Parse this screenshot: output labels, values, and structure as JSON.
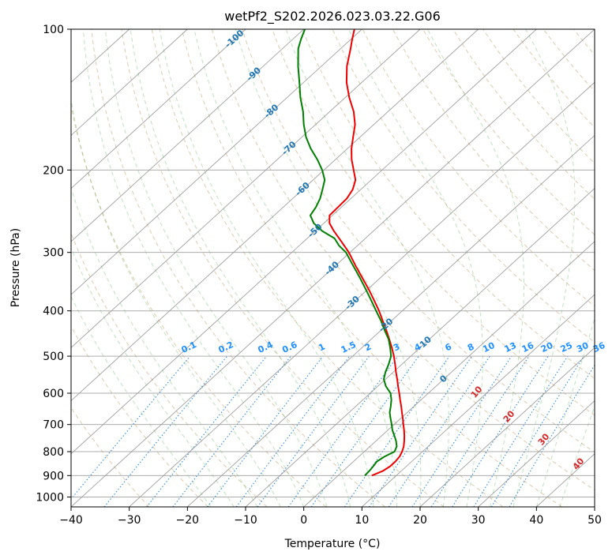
{
  "chart_data": {
    "type": "line",
    "diagram": "Skew-T log-P",
    "title": "wetPf2_S202.2026.023.03.22.G06",
    "xlabel": "Temperature (°C)",
    "ylabel": "Pressure (hPa)",
    "xlim": [
      -40,
      50
    ],
    "ylim": [
      1050,
      100
    ],
    "y_scale": "log",
    "x_ticks": [
      "−40",
      "−30",
      "−20",
      "−10",
      "0",
      "10",
      "20",
      "30",
      "40",
      "50"
    ],
    "y_ticks": [
      "100",
      "200",
      "300",
      "400",
      "500",
      "600",
      "700",
      "800",
      "900",
      "1000"
    ],
    "grid": true,
    "isotherm_labels": [
      "-100",
      "-90",
      "-80",
      "-70",
      "-60",
      "-50",
      "-40",
      "-30",
      "-20",
      "-10",
      "0"
    ],
    "isotherm_label_values": [
      -100,
      -90,
      -80,
      -70,
      -60,
      -50,
      -40,
      -30,
      -20,
      -10,
      0
    ],
    "mixing_ratio_labels": [
      "0.1",
      "0.2",
      "0.4",
      "0.6",
      "1",
      "1.5",
      "2",
      "3",
      "4",
      "6",
      "8",
      "10",
      "13",
      "16",
      "20",
      "25",
      "30",
      "36"
    ],
    "moist_adiabat_labels": [
      "10",
      "20",
      "30",
      "40"
    ],
    "series": [
      {
        "color": "#ee0000",
        "p": [
          900,
          880,
          860,
          840,
          820,
          800,
          780,
          760,
          740,
          720,
          700,
          680,
          660,
          640,
          620,
          600,
          580,
          560,
          540,
          520,
          500,
          480,
          460,
          440,
          420,
          400,
          380,
          360,
          340,
          320,
          300,
          290,
          280,
          270,
          260,
          250,
          240,
          230,
          220,
          210,
          200,
          190,
          180,
          170,
          160,
          150,
          140,
          130,
          120,
          110,
          105,
          100
        ],
        "t": [
          5.8,
          6.8,
          7.2,
          7.2,
          7.0,
          6.5,
          5.8,
          4.9,
          3.9,
          2.8,
          1.6,
          0.4,
          -0.9,
          -2.2,
          -3.6,
          -5.0,
          -6.5,
          -8.0,
          -9.6,
          -11.2,
          -12.9,
          -14.8,
          -16.9,
          -19.1,
          -21.5,
          -24.0,
          -26.8,
          -29.8,
          -33.1,
          -36.6,
          -40.2,
          -42.3,
          -44.5,
          -46.8,
          -49.0,
          -50.5,
          -50.6,
          -50.7,
          -51.4,
          -52.7,
          -54.9,
          -57.2,
          -59.3,
          -61.2,
          -63.2,
          -65.9,
          -69.3,
          -72.6,
          -75.6,
          -78.3,
          -79.8,
          -81.3
        ]
      },
      {
        "color": "#008000",
        "p": [
          900,
          880,
          860,
          840,
          820,
          800,
          780,
          760,
          740,
          720,
          700,
          680,
          660,
          640,
          620,
          600,
          580,
          560,
          540,
          520,
          500,
          480,
          460,
          440,
          420,
          400,
          380,
          360,
          340,
          320,
          300,
          290,
          280,
          270,
          260,
          250,
          240,
          230,
          220,
          210,
          200,
          190,
          180,
          170,
          160,
          150,
          140,
          130,
          120,
          110,
          105,
          100
        ],
        "t": [
          4.6,
          4.5,
          4.3,
          4.0,
          4.4,
          5.2,
          4.6,
          3.5,
          2.2,
          0.8,
          -0.4,
          -1.7,
          -3.0,
          -4.0,
          -5.1,
          -6.5,
          -8.6,
          -10.3,
          -11.4,
          -12.3,
          -13.4,
          -15.1,
          -17.0,
          -19.4,
          -21.8,
          -24.5,
          -27.3,
          -30.3,
          -33.5,
          -37.0,
          -40.7,
          -43.2,
          -45.3,
          -48.8,
          -51.7,
          -53.8,
          -54.4,
          -55.3,
          -56.6,
          -58.0,
          -60.3,
          -63.1,
          -66.3,
          -69.3,
          -72.0,
          -74.6,
          -77.7,
          -80.7,
          -84.0,
          -87.3,
          -88.6,
          -89.8
        ]
      }
    ]
  }
}
